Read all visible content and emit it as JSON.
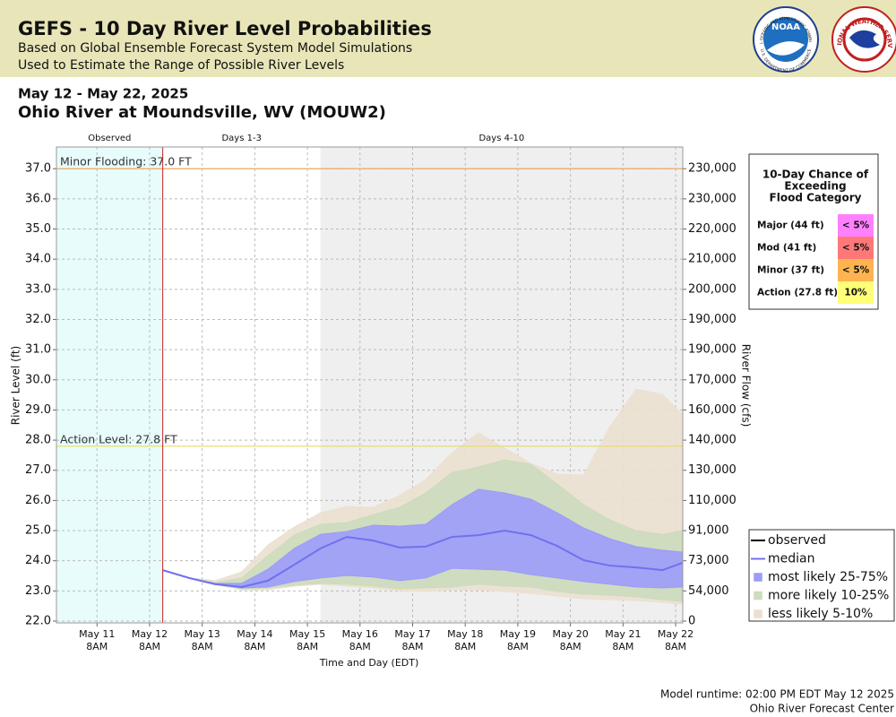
{
  "header": {
    "title": "GEFS - 10 Day River Level Probabilities",
    "subtitle": "Based on Global Ensemble Forecast System Model Simulations",
    "subtitle2": "Used to Estimate the Range of Possible River Levels",
    "noaa": "NOAA",
    "noaa_ring": "NATIONAL OCEANIC AND ATMOSPHERIC ADMINISTRATION",
    "noaa_ring2": "U.S. DEPARTMENT OF COMMERCE",
    "nws_ring": "NATIONAL WEATHER SERVICE"
  },
  "date_range": "May 12 - May 22, 2025",
  "station": "Ohio River at Moundsville, WV (MOUW2)",
  "chart_data": {
    "type": "line",
    "xlabel": "Time and Day (EDT)",
    "ylabel": "River Level (ft)",
    "y2label": "River Flow (cfs)",
    "xlim": [
      "2025-05-10T13:30",
      "2025-05-22T11:15"
    ],
    "ylim": [
      21.94,
      37.72
    ],
    "yticks": [
      {
        "value": 22,
        "label": "22.0"
      },
      {
        "value": 23,
        "label": "23.0"
      },
      {
        "value": 24,
        "label": "24.0"
      },
      {
        "value": 25,
        "label": "25.0"
      },
      {
        "value": 26,
        "label": "26.0"
      },
      {
        "value": 27,
        "label": "27.0"
      },
      {
        "value": 28,
        "label": "28.0"
      },
      {
        "value": 29,
        "label": "29.0"
      },
      {
        "value": 30,
        "label": "30.0"
      },
      {
        "value": 31,
        "label": "31.0"
      },
      {
        "value": 32,
        "label": "32.0"
      },
      {
        "value": 33,
        "label": "33.0"
      },
      {
        "value": 34,
        "label": "34.0"
      },
      {
        "value": 35,
        "label": "35.0"
      },
      {
        "value": 36,
        "label": "36.0"
      },
      {
        "value": 37,
        "label": "37.0"
      }
    ],
    "y2ticks": [
      0,
      {
        "value": 54000,
        "label": "54,000"
      },
      {
        "value": 73000,
        "label": "73,000"
      },
      {
        "value": 91000,
        "label": "91,000"
      },
      {
        "value": 110000,
        "label": "110,000"
      },
      {
        "value": 130000,
        "label": "130,000"
      },
      {
        "value": 140000,
        "label": "140,000"
      },
      {
        "value": 160000,
        "label": "160,000"
      },
      {
        "value": 170000,
        "label": "170,000"
      },
      {
        "value": 190000,
        "label": "190,000"
      },
      {
        "value": 190000,
        "label": "190,000"
      },
      {
        "value": 200000,
        "label": "200,000"
      },
      {
        "value": 210000,
        "label": "210,000"
      },
      {
        "value": 220000,
        "label": "220,000"
      },
      {
        "value": 230000,
        "label": "230,000"
      },
      {
        "value": 230000,
        "label": "230,000"
      }
    ],
    "xticks": [
      {
        "value": "2025-05-11T08:00",
        "label": [
          "May 11",
          "8AM"
        ]
      },
      {
        "value": "2025-05-12T08:00",
        "label": [
          "May 12",
          "8AM"
        ]
      },
      {
        "value": "2025-05-13T08:00",
        "label": [
          "May 13",
          "8AM"
        ]
      },
      {
        "value": "2025-05-14T08:00",
        "label": [
          "May 14",
          "8AM"
        ]
      },
      {
        "value": "2025-05-15T08:00",
        "label": [
          "May 15",
          "8AM"
        ]
      },
      {
        "value": "2025-05-16T08:00",
        "label": [
          "May 16",
          "8AM"
        ]
      },
      {
        "value": "2025-05-17T08:00",
        "label": [
          "May 17",
          "8AM"
        ]
      },
      {
        "value": "2025-05-18T08:00",
        "label": [
          "May 18",
          "8AM"
        ]
      },
      {
        "value": "2025-05-19T08:00",
        "label": [
          "May 19",
          "8AM"
        ]
      },
      {
        "value": "2025-05-20T08:00",
        "label": [
          "May 20",
          "8AM"
        ]
      },
      {
        "value": "2025-05-21T08:00",
        "label": [
          "May 21",
          "8AM"
        ]
      },
      {
        "value": "2025-05-22T08:00",
        "label": [
          "May 22",
          "8AM"
        ]
      }
    ],
    "grid": true,
    "regions": [
      {
        "label": "Observed",
        "end": "2025-05-12T14:00",
        "color": "#e8fcfc"
      },
      {
        "label": "Days 1-3",
        "end": "2025-05-15T14:00",
        "color": "#ffffff"
      },
      {
        "label": "Days 4-10",
        "color": "#efefef"
      }
    ],
    "now_line_color": "#cc2222",
    "thresholds": [
      {
        "label": "Minor Flooding: 37.0 FT",
        "value": 37,
        "color": "#f0a860"
      },
      {
        "label": "Action Level: 27.8 FT",
        "value": 27.8,
        "color": "#e8dc60"
      }
    ],
    "x": [
      "2025-05-12T14:00",
      "2025-05-13T02:00",
      "2025-05-13T14:00",
      "2025-05-14T02:00",
      "2025-05-14T14:00",
      "2025-05-15T02:00",
      "2025-05-15T14:00",
      "2025-05-16T02:00",
      "2025-05-16T14:00",
      "2025-05-17T02:00",
      "2025-05-17T14:00",
      "2025-05-18T02:00",
      "2025-05-18T14:00",
      "2025-05-19T02:00",
      "2025-05-19T14:00",
      "2025-05-20T02:00",
      "2025-05-20T14:00",
      "2025-05-21T02:00",
      "2025-05-21T14:00",
      "2025-05-22T02:00",
      "2025-05-22T11:00"
    ],
    "series": [
      {
        "name": "observed",
        "color": "#000000"
      },
      {
        "name": "median",
        "color": "#7070f0",
        "values": [
          23.69,
          23.43,
          23.22,
          23.13,
          23.34,
          23.87,
          24.41,
          24.79,
          24.67,
          24.44,
          24.47,
          24.79,
          24.85,
          25.0,
          24.85,
          24.49,
          24.02,
          23.84,
          23.78,
          23.69,
          23.93
        ]
      },
      {
        "name": "most likely 25-75%",
        "color": "#9c9cfa",
        "low": [
          23.69,
          23.43,
          23.22,
          23.1,
          23.13,
          23.31,
          23.43,
          23.51,
          23.46,
          23.34,
          23.43,
          23.75,
          23.72,
          23.69,
          23.54,
          23.43,
          23.31,
          23.22,
          23.13,
          23.1,
          23.13
        ],
        "high": [
          23.69,
          23.43,
          23.25,
          23.25,
          23.72,
          24.41,
          24.88,
          24.97,
          25.18,
          25.15,
          25.21,
          25.86,
          26.37,
          26.25,
          26.04,
          25.59,
          25.09,
          24.73,
          24.47,
          24.35,
          24.29
        ]
      },
      {
        "name": "more likely 10-25%",
        "color": "#ccdcbc",
        "low": [
          23.69,
          23.43,
          23.22,
          23.07,
          23.1,
          23.19,
          23.25,
          23.22,
          23.16,
          23.07,
          23.1,
          23.13,
          23.22,
          23.16,
          23.13,
          22.98,
          22.89,
          22.86,
          22.8,
          22.71,
          22.65
        ],
        "high": [
          23.69,
          23.43,
          23.28,
          23.43,
          24.17,
          24.85,
          25.21,
          25.27,
          25.53,
          25.77,
          26.25,
          26.93,
          27.11,
          27.35,
          27.2,
          26.54,
          25.86,
          25.36,
          25.0,
          24.88,
          25.0
        ]
      },
      {
        "name": "less likely 5-10%",
        "color": "#ebe0d0",
        "low": [
          23.69,
          23.43,
          23.22,
          23.04,
          23.04,
          23.16,
          23.22,
          23.16,
          23.1,
          23.01,
          22.98,
          23.04,
          23.04,
          22.98,
          22.92,
          22.83,
          22.74,
          22.71,
          22.68,
          22.62,
          22.56
        ],
        "high": [
          23.69,
          23.43,
          23.34,
          23.63,
          24.52,
          25.12,
          25.59,
          25.8,
          25.77,
          26.16,
          26.69,
          27.58,
          28.24,
          27.73,
          27.23,
          26.87,
          26.84,
          28.44,
          29.69,
          29.51,
          28.86
        ]
      }
    ]
  },
  "flood_table": {
    "title": [
      "10-Day Chance of",
      "Exceeding",
      "Flood Category"
    ],
    "rows": [
      {
        "category": "Major (44 ft)",
        "chance": "< 5%",
        "color": "#ff80ff"
      },
      {
        "category": "Mod (41 ft)",
        "chance": "< 5%",
        "color": "#ff7878"
      },
      {
        "category": "Minor (37 ft)",
        "chance": "< 5%",
        "color": "#ffb450"
      },
      {
        "category": "Action (27.8 ft)",
        "chance": "10%",
        "color": "#ffff78"
      }
    ]
  },
  "footer": {
    "runtime": "Model runtime: 02:00 PM EDT May 12 2025",
    "center": "Ohio River Forecast Center"
  }
}
